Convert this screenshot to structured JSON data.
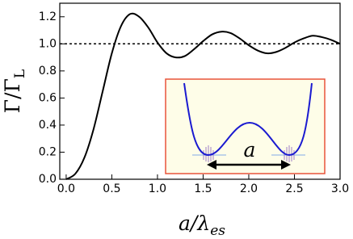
{
  "chart_data": {
    "type": "line",
    "x": [
      0,
      0.1,
      0.2,
      0.3,
      0.4,
      0.5,
      0.6,
      0.7,
      0.8,
      0.9,
      1.0,
      1.1,
      1.2,
      1.3,
      1.4,
      1.5,
      1.6,
      1.7,
      1.8,
      1.9,
      2.0,
      2.1,
      2.2,
      2.3,
      2.4,
      2.5,
      2.6,
      2.7,
      2.8,
      2.9,
      3.0
    ],
    "y": [
      0,
      0.04,
      0.16,
      0.37,
      0.65,
      0.93,
      1.13,
      1.22,
      1.2,
      1.12,
      1.01,
      0.93,
      0.9,
      0.91,
      0.96,
      1.02,
      1.07,
      1.09,
      1.08,
      1.04,
      0.99,
      0.95,
      0.93,
      0.94,
      0.97,
      1.01,
      1.04,
      1.06,
      1.05,
      1.03,
      1.0
    ],
    "color": "#000000",
    "xlim": [
      -0.07,
      3.0
    ],
    "ylim": [
      0,
      1.3
    ],
    "xticks": [
      {
        "value": 0,
        "label": "0.0"
      },
      0.5,
      {
        "value": 1,
        "label": "1.0"
      },
      1.5,
      {
        "value": 2,
        "label": "2.0"
      },
      2.5,
      {
        "value": 3,
        "label": "3.0"
      }
    ],
    "yticks": [
      {
        "value": 0,
        "label": "0.0"
      },
      0.2,
      0.4,
      0.6,
      0.8,
      {
        "value": 1,
        "label": "1.0"
      },
      1.2
    ],
    "reference_line": 1.0,
    "xlabel": [
      "a/λ",
      "es"
    ],
    "ylabel": [
      "Γ/Γ",
      "L"
    ],
    "inset_label": "a"
  }
}
